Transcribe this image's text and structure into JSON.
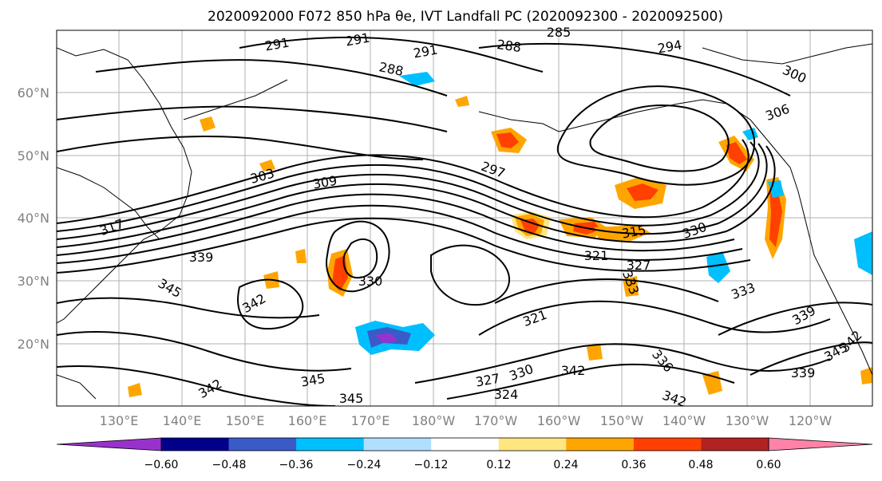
{
  "title": "2020092000 F072 850 hPa θe, IVT Landfall PC (2020092300 - 2020092500)",
  "map": {
    "lon_labels": [
      "130°E",
      "140°E",
      "150°E",
      "160°E",
      "170°E",
      "180°W",
      "170°W",
      "160°W",
      "150°W",
      "140°W",
      "130°W",
      "120°W"
    ],
    "lat_labels": [
      "60°N",
      "50°N",
      "40°N",
      "30°N",
      "20°N"
    ],
    "contour_levels": [
      "291",
      "291",
      "291",
      "288",
      "288",
      "285",
      "294",
      "300",
      "306",
      "303",
      "309",
      "297",
      "317",
      "339",
      "345",
      "342",
      "330",
      "315",
      "321",
      "327",
      "330",
      "333",
      "336",
      "339",
      "345",
      "342",
      "342",
      "345",
      "342",
      "345",
      "342",
      "330",
      "327",
      "324",
      "321",
      "333",
      "339"
    ],
    "shading_colors": {
      "purple": "#9932cc",
      "navy": "#00008b",
      "royal_blue": "#3a5bc7",
      "deep_sky_blue": "#00bfff",
      "light_blue": "#b0e0ff",
      "white": "#ffffff",
      "light_yellow": "#ffe680",
      "orange": "#ffa500",
      "orange_red": "#ff4000",
      "dark_red": "#b22222",
      "pink": "#ff82a8"
    }
  },
  "colorbar": {
    "tick_labels": [
      "−0.60",
      "−0.48",
      "−0.36",
      "−0.24",
      "−0.12",
      "0.12",
      "0.24",
      "0.36",
      "0.48",
      "0.60"
    ],
    "bin_colors": [
      "#9932cc",
      "#00008b",
      "#3a5bc7",
      "#00bfff",
      "#b0e0ff",
      "#ffffff",
      "#ffe680",
      "#ffa500",
      "#ff4000",
      "#b22222",
      "#ff82a8"
    ]
  }
}
